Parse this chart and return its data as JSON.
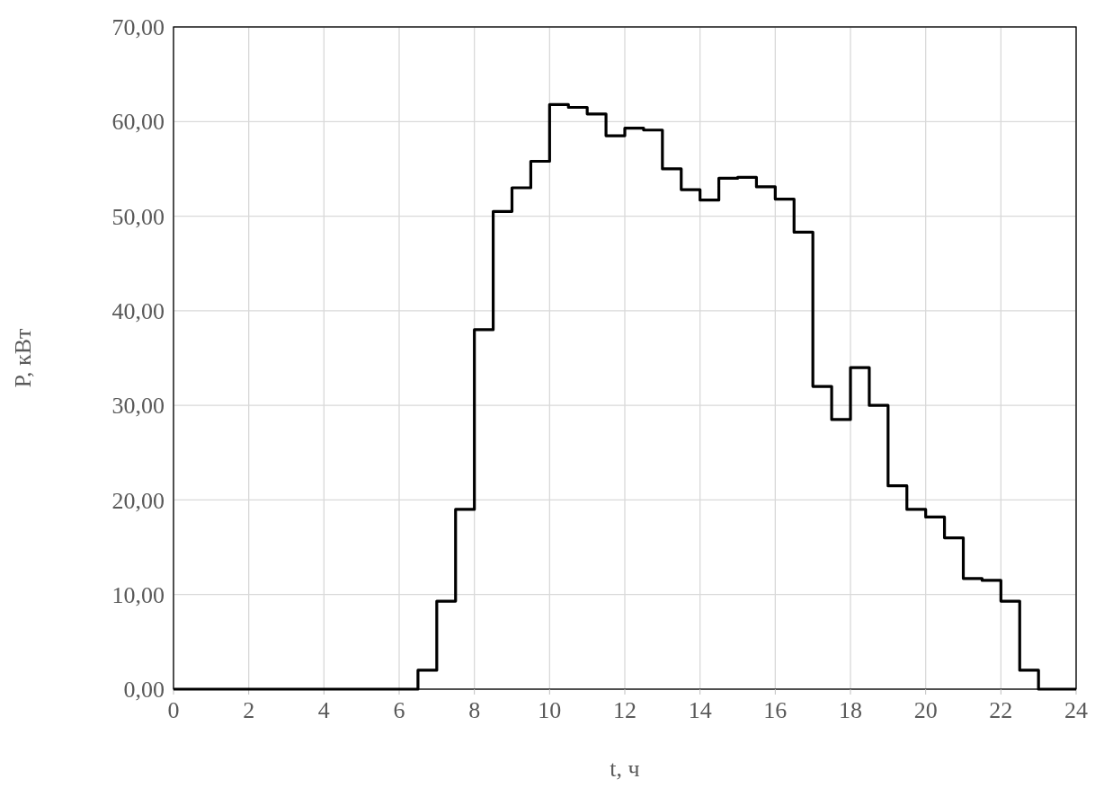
{
  "chart_data": {
    "type": "step",
    "xlabel": "t, ч",
    "ylabel": "P, кВт",
    "x": [
      0,
      0.5,
      1,
      1.5,
      2,
      2.5,
      3,
      3.5,
      4,
      4.5,
      5,
      5.5,
      6,
      6.5,
      7,
      7.5,
      8,
      8.5,
      9,
      9.5,
      10,
      10.5,
      11,
      11.5,
      12,
      12.5,
      13,
      13.5,
      14,
      14.5,
      15,
      15.5,
      16,
      16.5,
      17,
      17.5,
      18,
      18.5,
      19,
      19.5,
      20,
      20.5,
      21,
      21.5,
      22,
      22.5,
      23,
      23.5,
      24
    ],
    "series": [
      {
        "color": "#000000",
        "values": [
          0,
          0,
          0,
          0,
          0,
          0,
          0,
          0,
          0,
          0,
          0,
          0,
          0,
          2,
          9.3,
          19,
          38,
          50.5,
          53,
          55.8,
          61.8,
          61.5,
          60.8,
          58.5,
          59.3,
          59.1,
          55,
          52.8,
          51.7,
          54,
          54.1,
          53.1,
          51.8,
          48.3,
          32,
          28.5,
          34,
          30,
          21.5,
          19,
          18.2,
          16,
          11.7,
          11.5,
          9.3,
          2,
          0,
          0,
          0
        ]
      }
    ],
    "xlim": [
      0,
      24
    ],
    "xticks": [
      0,
      2,
      4,
      6,
      8,
      10,
      12,
      14,
      16,
      18,
      20,
      22,
      24
    ],
    "ylim": [
      0,
      70
    ],
    "yticks": [
      {
        "value": 0,
        "label": "0,00"
      },
      {
        "value": 10,
        "label": "10,00"
      },
      {
        "value": 20,
        "label": "20,00"
      },
      {
        "value": 30,
        "label": "30,00"
      },
      {
        "value": 40,
        "label": "40,00"
      },
      {
        "value": 50,
        "label": "50,00"
      },
      {
        "value": 60,
        "label": "60,00"
      },
      {
        "value": 70,
        "label": "70,00"
      }
    ],
    "grid": true,
    "marker": "none",
    "line_style": "solid"
  }
}
